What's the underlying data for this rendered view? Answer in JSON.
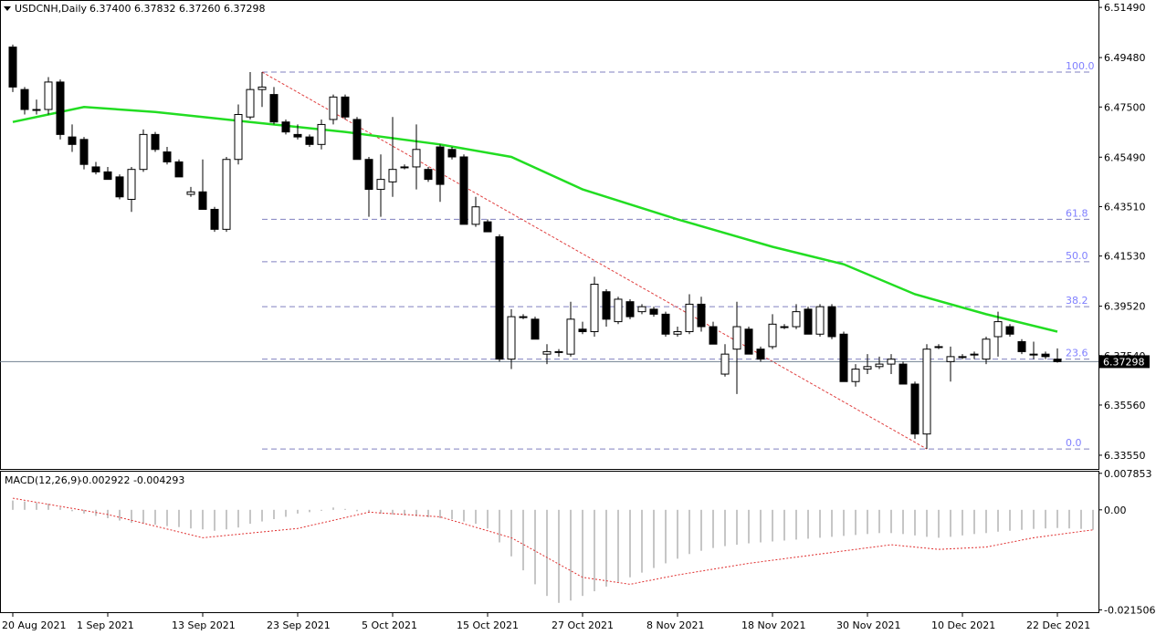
{
  "header": {
    "symbol": "USDCNH,Daily",
    "ohlc": "6.37400 6.37832 6.37260 6.37298"
  },
  "macd": {
    "label": "MACD(12,26,9)",
    "values": "-0.002922 -0.004293"
  },
  "chart_data": [
    {
      "type": "candlestick",
      "title": "USDCNH,Daily",
      "y_ticks": [
        "6.51490",
        "6.49480",
        "6.47500",
        "6.45490",
        "6.43510",
        "6.41530",
        "6.39520",
        "6.37540",
        "6.35560",
        "6.33550"
      ],
      "ylim": [
        6.33,
        6.5175
      ],
      "x_ticks": [
        {
          "label": "20 Aug 2021",
          "index": 0
        },
        {
          "label": "1 Sep 2021",
          "index": 8
        },
        {
          "label": "13 Sep 2021",
          "index": 16
        },
        {
          "label": "23 Sep 2021",
          "index": 24
        },
        {
          "label": "5 Oct 2021",
          "index": 32
        },
        {
          "label": "15 Oct 2021",
          "index": 40
        },
        {
          "label": "27 Oct 2021",
          "index": 48
        },
        {
          "label": "8 Nov 2021",
          "index": 56
        },
        {
          "label": "18 Nov 2021",
          "index": 64
        },
        {
          "label": "30 Nov 2021",
          "index": 72
        },
        {
          "label": "10 Dec 2021",
          "index": 80
        },
        {
          "label": "22 Dec 2021",
          "index": 88
        }
      ],
      "current_price": "6.37298",
      "candles": [
        [
          6.499,
          6.5,
          6.481,
          6.483
        ],
        [
          6.482,
          6.483,
          6.472,
          6.474
        ],
        [
          6.474,
          6.478,
          6.472,
          6.474
        ],
        [
          6.474,
          6.487,
          6.472,
          6.485
        ],
        [
          6.485,
          6.486,
          6.462,
          6.464
        ],
        [
          6.463,
          6.468,
          6.457,
          6.46
        ],
        [
          6.462,
          6.463,
          6.45,
          6.452
        ],
        [
          6.451,
          6.453,
          6.448,
          6.449
        ],
        [
          6.449,
          6.451,
          6.446,
          6.446
        ],
        [
          6.447,
          6.448,
          6.438,
          6.439
        ],
        [
          6.438,
          6.451,
          6.433,
          6.45
        ],
        [
          6.45,
          6.466,
          6.449,
          6.464
        ],
        [
          6.464,
          6.465,
          6.457,
          6.458
        ],
        [
          6.457,
          6.459,
          6.452,
          6.453
        ],
        [
          6.453,
          6.454,
          6.447,
          6.447
        ],
        [
          6.44,
          6.443,
          6.439,
          6.441
        ],
        [
          6.441,
          6.454,
          6.434,
          6.434
        ],
        [
          6.434,
          6.435,
          6.425,
          6.426
        ],
        [
          6.426,
          6.455,
          6.425,
          6.454
        ],
        [
          6.454,
          6.476,
          6.452,
          6.472
        ],
        [
          6.471,
          6.489,
          6.47,
          6.482
        ],
        [
          6.482,
          6.489,
          6.475,
          6.483
        ],
        [
          6.48,
          6.483,
          6.468,
          6.469
        ],
        [
          6.469,
          6.47,
          6.464,
          6.465
        ],
        [
          6.464,
          6.468,
          6.462,
          6.463
        ],
        [
          6.463,
          6.464,
          6.459,
          6.46
        ],
        [
          6.46,
          6.47,
          6.458,
          6.468
        ],
        [
          6.47,
          6.48,
          6.468,
          6.479
        ],
        [
          6.479,
          6.48,
          6.47,
          6.471
        ],
        [
          6.47,
          6.471,
          6.454,
          6.454
        ],
        [
          6.454,
          6.455,
          6.431,
          6.442
        ],
        [
          6.442,
          6.456,
          6.431,
          6.446
        ],
        [
          6.445,
          6.471,
          6.439,
          6.45
        ],
        [
          6.451,
          6.452,
          6.45,
          6.451
        ],
        [
          6.451,
          6.468,
          6.442,
          6.458
        ],
        [
          6.45,
          6.451,
          6.445,
          6.446
        ],
        [
          6.459,
          6.46,
          6.437,
          6.444
        ],
        [
          6.458,
          6.459,
          6.454,
          6.455
        ],
        [
          6.455,
          6.456,
          6.428,
          6.428
        ],
        [
          6.428,
          6.439,
          6.427,
          6.435
        ],
        [
          6.429,
          6.43,
          6.425,
          6.425
        ],
        [
          6.423,
          6.424,
          6.373,
          6.374
        ],
        [
          6.374,
          6.394,
          6.37,
          6.391
        ],
        [
          6.391,
          6.392,
          6.39,
          6.391
        ],
        [
          6.39,
          6.391,
          6.382,
          6.382
        ],
        [
          6.376,
          6.38,
          6.372,
          6.377
        ],
        [
          6.377,
          6.378,
          6.375,
          6.377
        ],
        [
          6.376,
          6.397,
          6.375,
          6.39
        ],
        [
          6.386,
          6.389,
          6.384,
          6.385
        ],
        [
          6.385,
          6.407,
          6.383,
          6.404
        ],
        [
          6.401,
          6.402,
          6.387,
          6.39
        ],
        [
          6.389,
          6.399,
          6.388,
          6.398
        ],
        [
          6.397,
          6.398,
          6.39,
          6.391
        ],
        [
          6.393,
          6.396,
          6.392,
          6.395
        ],
        [
          6.394,
          6.395,
          6.391,
          6.392
        ],
        [
          6.392,
          6.393,
          6.383,
          6.384
        ],
        [
          6.384,
          6.387,
          6.383,
          6.385
        ],
        [
          6.385,
          6.4,
          6.384,
          6.396
        ],
        [
          6.396,
          6.399,
          6.385,
          6.387
        ],
        [
          6.387,
          6.389,
          6.38,
          6.38
        ],
        [
          6.368,
          6.38,
          6.367,
          6.376
        ],
        [
          6.378,
          6.397,
          6.36,
          6.387
        ],
        [
          6.386,
          6.387,
          6.376,
          6.376
        ],
        [
          6.378,
          6.379,
          6.373,
          6.374
        ],
        [
          6.379,
          6.392,
          6.378,
          6.388
        ],
        [
          6.387,
          6.388,
          6.386,
          6.387
        ],
        [
          6.387,
          6.396,
          6.386,
          6.393
        ],
        [
          6.394,
          6.395,
          6.384,
          6.384
        ],
        [
          6.384,
          6.396,
          6.383,
          6.395
        ],
        [
          6.395,
          6.396,
          6.382,
          6.383
        ],
        [
          6.384,
          6.385,
          6.365,
          6.365
        ],
        [
          6.365,
          6.372,
          6.363,
          6.37
        ],
        [
          6.37,
          6.376,
          6.368,
          6.371
        ],
        [
          6.371,
          6.375,
          6.37,
          6.372
        ],
        [
          6.372,
          6.376,
          6.368,
          6.374
        ],
        [
          6.372,
          6.373,
          6.364,
          6.364
        ],
        [
          6.364,
          6.365,
          6.342,
          6.344
        ],
        [
          6.344,
          6.38,
          6.338,
          6.378
        ],
        [
          6.379,
          6.38,
          6.378,
          6.379
        ],
        [
          6.373,
          6.379,
          6.365,
          6.375
        ],
        [
          6.375,
          6.376,
          6.374,
          6.375
        ],
        [
          6.376,
          6.377,
          6.374,
          6.376
        ],
        [
          6.374,
          6.383,
          6.372,
          6.382
        ],
        [
          6.383,
          6.393,
          6.375,
          6.389
        ],
        [
          6.387,
          6.388,
          6.383,
          6.384
        ],
        [
          6.381,
          6.382,
          6.376,
          6.377
        ],
        [
          6.376,
          6.381,
          6.374,
          6.376
        ],
        [
          6.376,
          6.377,
          6.374,
          6.375
        ],
        [
          6.374,
          6.3783,
          6.3726,
          6.373
        ]
      ],
      "ma_points": [
        [
          0,
          6.469
        ],
        [
          6,
          6.475
        ],
        [
          12,
          6.473
        ],
        [
          20,
          6.469
        ],
        [
          28,
          6.465
        ],
        [
          36,
          6.46
        ],
        [
          42,
          6.455
        ],
        [
          48,
          6.442
        ],
        [
          56,
          6.43
        ],
        [
          64,
          6.419
        ],
        [
          70,
          6.412
        ],
        [
          76,
          6.4
        ],
        [
          82,
          6.392
        ],
        [
          88,
          6.385
        ]
      ],
      "fibonacci": {
        "levels": [
          {
            "label": "100.0",
            "value": 6.489
          },
          {
            "label": "61.8",
            "value": 6.43
          },
          {
            "label": "50.0",
            "value": 6.413
          },
          {
            "label": "38.2",
            "value": 6.395
          },
          {
            "label": "23.6",
            "value": 6.374
          },
          {
            "label": "0.0",
            "value": 6.338
          }
        ],
        "start_index": 21,
        "end_index": 91,
        "trend_from": [
          21,
          6.489
        ],
        "trend_to": [
          77,
          6.338
        ]
      }
    },
    {
      "type": "histogram+line",
      "title": "MACD(12,26,9)",
      "y_ticks": [
        "0.007853",
        "0.00",
        "-0.021506"
      ],
      "ylim": [
        -0.022,
        0.0082
      ],
      "histogram": [
        0.002,
        0.0018,
        0.0015,
        0.0013,
        0.0005,
        -0.0003,
        -0.0008,
        -0.0013,
        -0.0018,
        -0.0023,
        -0.0028,
        -0.003,
        -0.0032,
        -0.0035,
        -0.0037,
        -0.004,
        -0.0042,
        -0.0045,
        -0.0042,
        -0.0038,
        -0.003,
        -0.0025,
        -0.002,
        -0.0015,
        -0.0008,
        -0.0005,
        -0.0002,
        0.0005,
        0.0002,
        -0.0003,
        -0.0006,
        -0.0008,
        -0.001,
        -0.0012,
        -0.0014,
        -0.0016,
        -0.0018,
        -0.002,
        -0.0025,
        -0.003,
        -0.004,
        -0.007,
        -0.01,
        -0.013,
        -0.016,
        -0.0185,
        -0.02,
        -0.0195,
        -0.0185,
        -0.0175,
        -0.0165,
        -0.0155,
        -0.0145,
        -0.0135,
        -0.0125,
        -0.0115,
        -0.0105,
        -0.0095,
        -0.0088,
        -0.0082,
        -0.0078,
        -0.0075,
        -0.0072,
        -0.007,
        -0.0068,
        -0.0066,
        -0.0064,
        -0.0062,
        -0.006,
        -0.0058,
        -0.0056,
        -0.0054,
        -0.0052,
        -0.005,
        -0.005,
        -0.0052,
        -0.0055,
        -0.0058,
        -0.006,
        -0.0058,
        -0.0055,
        -0.0052,
        -0.005,
        -0.0047,
        -0.0045,
        -0.0043,
        -0.0041,
        -0.004,
        -0.0039,
        -0.004,
        -0.0041,
        -0.0043
      ],
      "signal": [
        [
          0,
          0.0025
        ],
        [
          8,
          -0.001
        ],
        [
          16,
          -0.006
        ],
        [
          24,
          -0.004
        ],
        [
          30,
          -0.0005
        ],
        [
          36,
          -0.0015
        ],
        [
          42,
          -0.006
        ],
        [
          48,
          -0.0145
        ],
        [
          52,
          -0.016
        ],
        [
          56,
          -0.014
        ],
        [
          62,
          -0.0115
        ],
        [
          68,
          -0.0095
        ],
        [
          74,
          -0.0075
        ],
        [
          78,
          -0.0085
        ],
        [
          82,
          -0.008
        ],
        [
          86,
          -0.006
        ],
        [
          91,
          -0.0043
        ]
      ]
    }
  ]
}
